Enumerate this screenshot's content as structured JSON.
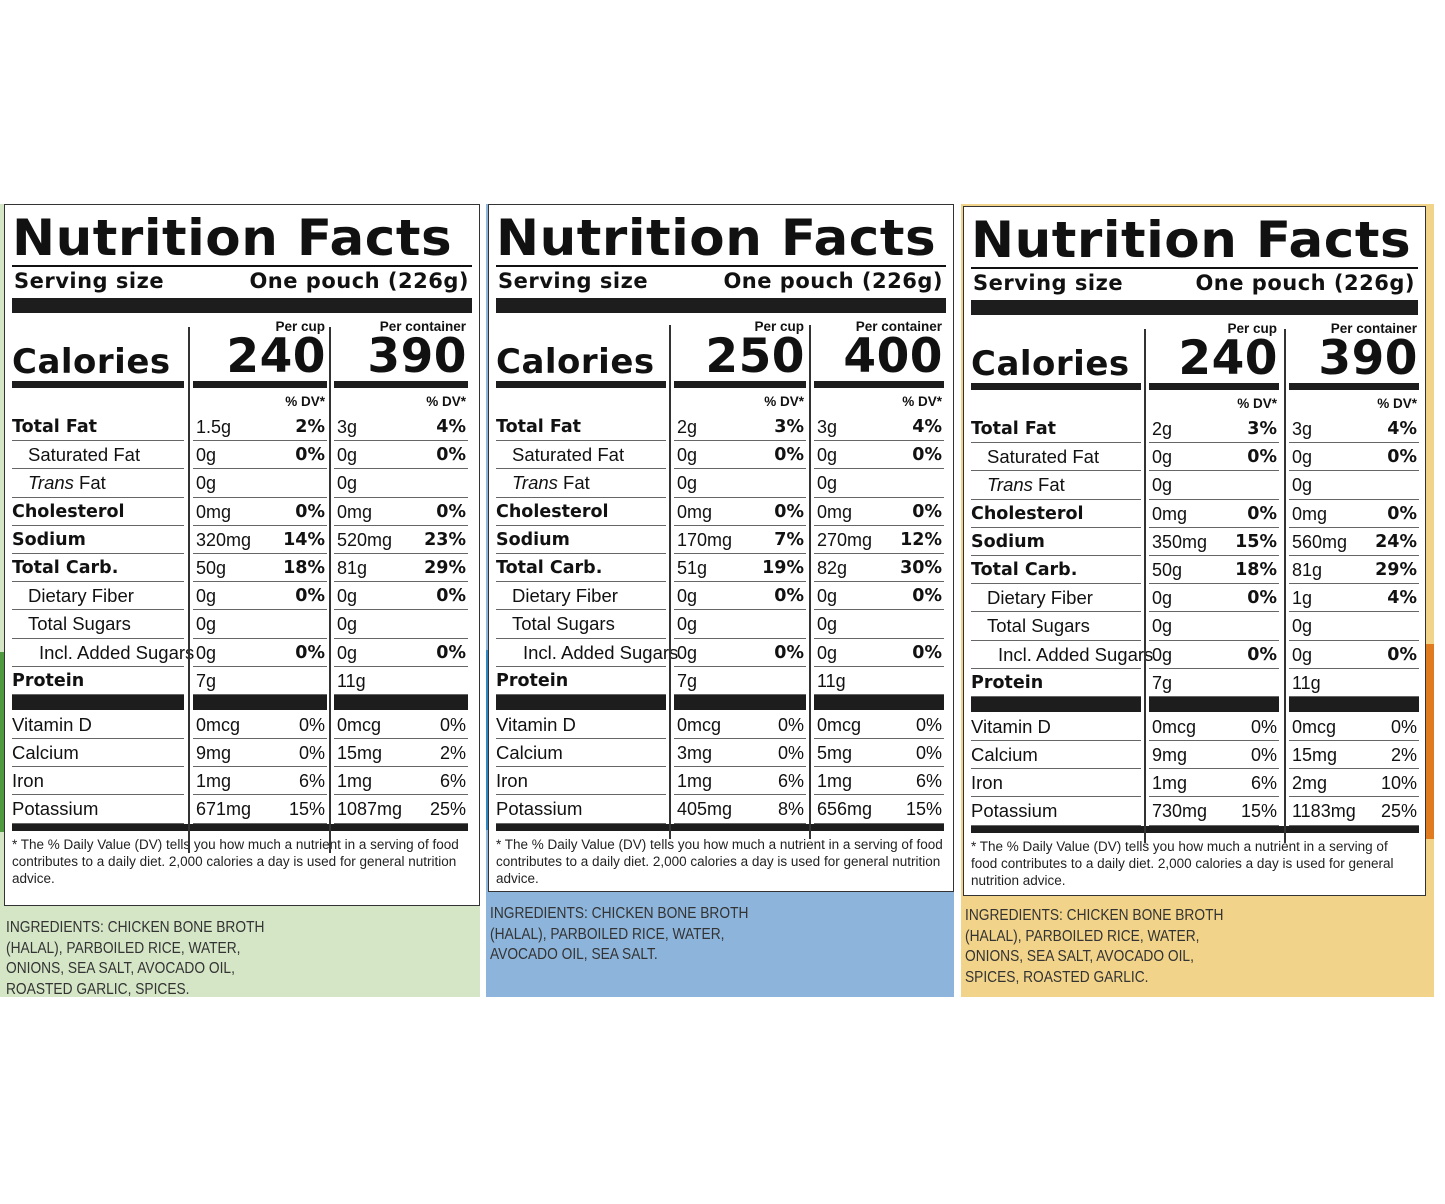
{
  "labels": [
    {
      "title": "Nutrition Facts",
      "serving_label": "Serving size",
      "serving_value": "One pouch (226g)",
      "calories_label": "Calories",
      "col1_header": "Per cup",
      "col2_header": "Per container",
      "cal1": "240",
      "cal2": "390",
      "dv_header": "% DV*",
      "rows": [
        {
          "name": "Total Fat",
          "v1": "1.5g",
          "p1": "2%",
          "v2": "3g",
          "p2": "4%"
        },
        {
          "name": "Saturated Fat",
          "v1": "0g",
          "p1": "0%",
          "v2": "0g",
          "p2": "0%"
        },
        {
          "name_italic": "Trans",
          "name": " Fat",
          "v1": "0g",
          "p1": "",
          "v2": "0g",
          "p2": ""
        },
        {
          "name": "Cholesterol",
          "v1": "0mg",
          "p1": "0%",
          "v2": "0mg",
          "p2": "0%"
        },
        {
          "name": "Sodium",
          "v1": "320mg",
          "p1": "14%",
          "v2": "520mg",
          "p2": "23%"
        },
        {
          "name": "Total Carb.",
          "v1": "50g",
          "p1": "18%",
          "v2": "81g",
          "p2": "29%"
        },
        {
          "name": "Dietary Fiber",
          "v1": "0g",
          "p1": "0%",
          "v2": "0g",
          "p2": "0%"
        },
        {
          "name": "Total Sugars",
          "v1": "0g",
          "p1": "",
          "v2": "0g",
          "p2": ""
        },
        {
          "name": "Incl. Added Sugars",
          "v1": "0g",
          "p1": "0%",
          "v2": "0g",
          "p2": "0%"
        },
        {
          "name": "Protein",
          "v1": "7g",
          "p1": "",
          "v2": "11g",
          "p2": ""
        }
      ],
      "vitamins": [
        {
          "name": "Vitamin D",
          "v1": "0mcg",
          "p1": "0%",
          "v2": "0mcg",
          "p2": "0%"
        },
        {
          "name": "Calcium",
          "v1": "9mg",
          "p1": "0%",
          "v2": "15mg",
          "p2": "2%"
        },
        {
          "name": "Iron",
          "v1": "1mg",
          "p1": "6%",
          "v2": "1mg",
          "p2": "6%"
        },
        {
          "name": "Potassium",
          "v1": "671mg",
          "p1": "15%",
          "v2": "1087mg",
          "p2": "25%"
        }
      ],
      "footnote": "* The % Daily Value (DV) tells you how much a nutrient in a serving of food contributes to a daily diet. 2,000 calories a day is used for general nutrition advice.",
      "ingredients": "INGREDIENTS: CHICKEN BONE BROTH\n(HALAL), PARBOILED RICE, WATER,\nONIONS, SEA SALT, AVOCADO OIL,\nROASTED GARLIC, SPICES.",
      "bg_color": "#d5e6c6",
      "strip_color": "#4f9a3e"
    },
    {
      "title": "Nutrition Facts",
      "serving_label": "Serving size",
      "serving_value": "One pouch (226g)",
      "calories_label": "Calories",
      "col1_header": "Per cup",
      "col2_header": "Per container",
      "cal1": "250",
      "cal2": "400",
      "dv_header": "% DV*",
      "rows": [
        {
          "name": "Total Fat",
          "v1": "2g",
          "p1": "3%",
          "v2": "3g",
          "p2": "4%"
        },
        {
          "name": "Saturated Fat",
          "v1": "0g",
          "p1": "0%",
          "v2": "0g",
          "p2": "0%"
        },
        {
          "name_italic": "Trans",
          "name": " Fat",
          "v1": "0g",
          "p1": "",
          "v2": "0g",
          "p2": ""
        },
        {
          "name": "Cholesterol",
          "v1": "0mg",
          "p1": "0%",
          "v2": "0mg",
          "p2": "0%"
        },
        {
          "name": "Sodium",
          "v1": "170mg",
          "p1": "7%",
          "v2": "270mg",
          "p2": "12%"
        },
        {
          "name": "Total Carb.",
          "v1": "51g",
          "p1": "19%",
          "v2": "82g",
          "p2": "30%"
        },
        {
          "name": "Dietary Fiber",
          "v1": "0g",
          "p1": "0%",
          "v2": "0g",
          "p2": "0%"
        },
        {
          "name": "Total Sugars",
          "v1": "0g",
          "p1": "",
          "v2": "0g",
          "p2": ""
        },
        {
          "name": "Incl. Added Sugars",
          "v1": "0g",
          "p1": "0%",
          "v2": "0g",
          "p2": "0%"
        },
        {
          "name": "Protein",
          "v1": "7g",
          "p1": "",
          "v2": "11g",
          "p2": ""
        }
      ],
      "vitamins": [
        {
          "name": "Vitamin D",
          "v1": "0mcg",
          "p1": "0%",
          "v2": "0mcg",
          "p2": "0%"
        },
        {
          "name": "Calcium",
          "v1": "3mg",
          "p1": "0%",
          "v2": "5mg",
          "p2": "0%"
        },
        {
          "name": "Iron",
          "v1": "1mg",
          "p1": "6%",
          "v2": "1mg",
          "p2": "6%"
        },
        {
          "name": "Potassium",
          "v1": "405mg",
          "p1": "8%",
          "v2": "656mg",
          "p2": "15%"
        }
      ],
      "footnote": "* The % Daily Value (DV) tells you how much a nutrient in a serving of food contributes to a daily diet. 2,000 calories a day is used for general nutrition advice.",
      "ingredients": "INGREDIENTS: CHICKEN BONE BROTH\n(HALAL), PARBOILED RICE, WATER,\nAVOCADO OIL, SEA SALT.",
      "bg_color": "#8db5dc",
      "strip_color": "#2f86c2"
    },
    {
      "title": "Nutrition Facts",
      "serving_label": "Serving size",
      "serving_value": "One pouch (226g)",
      "calories_label": "Calories",
      "col1_header": "Per cup",
      "col2_header": "Per container",
      "cal1": "240",
      "cal2": "390",
      "dv_header": "% DV*",
      "rows": [
        {
          "name": "Total Fat",
          "v1": "2g",
          "p1": "3%",
          "v2": "3g",
          "p2": "4%"
        },
        {
          "name": "Saturated Fat",
          "v1": "0g",
          "p1": "0%",
          "v2": "0g",
          "p2": "0%"
        },
        {
          "name_italic": "Trans",
          "name": " Fat",
          "v1": "0g",
          "p1": "",
          "v2": "0g",
          "p2": ""
        },
        {
          "name": "Cholesterol",
          "v1": "0mg",
          "p1": "0%",
          "v2": "0mg",
          "p2": "0%"
        },
        {
          "name": "Sodium",
          "v1": "350mg",
          "p1": "15%",
          "v2": "560mg",
          "p2": "24%"
        },
        {
          "name": "Total Carb.",
          "v1": "50g",
          "p1": "18%",
          "v2": "81g",
          "p2": "29%"
        },
        {
          "name": "Dietary Fiber",
          "v1": "0g",
          "p1": "0%",
          "v2": "1g",
          "p2": "4%"
        },
        {
          "name": "Total Sugars",
          "v1": "0g",
          "p1": "",
          "v2": "0g",
          "p2": ""
        },
        {
          "name": "Incl. Added Sugars",
          "v1": "0g",
          "p1": "0%",
          "v2": "0g",
          "p2": "0%"
        },
        {
          "name": "Protein",
          "v1": "7g",
          "p1": "",
          "v2": "11g",
          "p2": ""
        }
      ],
      "vitamins": [
        {
          "name": "Vitamin D",
          "v1": "0mcg",
          "p1": "0%",
          "v2": "0mcg",
          "p2": "0%"
        },
        {
          "name": "Calcium",
          "v1": "9mg",
          "p1": "0%",
          "v2": "15mg",
          "p2": "2%"
        },
        {
          "name": "Iron",
          "v1": "1mg",
          "p1": "6%",
          "v2": "2mg",
          "p2": "10%"
        },
        {
          "name": "Potassium",
          "v1": "730mg",
          "p1": "15%",
          "v2": "1183mg",
          "p2": "25%"
        }
      ],
      "footnote": "* The % Daily Value (DV) tells you how much a nutrient in a serving of food contributes to a daily diet. 2,000 calories a day is used for general nutrition advice.",
      "ingredients": "INGREDIENTS: CHICKEN BONE BROTH\n(HALAL), PARBOILED RICE, WATER,\nONIONS, SEA SALT, AVOCADO OIL,\nSPICES, ROASTED GARLIC.",
      "bg_color": "#f1d38a",
      "strip_color": "#e07a1e"
    }
  ]
}
